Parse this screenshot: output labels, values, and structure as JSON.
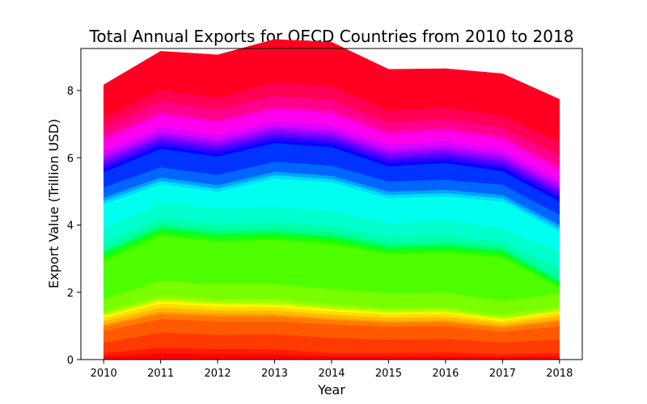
{
  "chart_data": {
    "type": "area",
    "stacked": true,
    "title": "Total Annual Exports for OECD Countries from 2010 to 2018",
    "xlabel": "Year",
    "ylabel": "Export Value (Trillion USD)",
    "x": [
      2010,
      2011,
      2012,
      2013,
      2014,
      2015,
      2016,
      2017,
      2018
    ],
    "xlim": [
      2009.6,
      2018.4
    ],
    "ylim": [
      0,
      9.25
    ],
    "yticks": [
      0,
      2,
      4,
      6,
      8
    ],
    "grid": false,
    "legend": "none",
    "colormap": "hsv",
    "series": [
      {
        "color": "#ff0000",
        "values": [
          0.1,
          0.18,
          0.16,
          0.15,
          0.1,
          0.1,
          0.1,
          0.08,
          0.1
        ]
      },
      {
        "color": "#ff1a00",
        "values": [
          0.1,
          0.18,
          0.16,
          0.16,
          0.1,
          0.1,
          0.12,
          0.08,
          0.1
        ]
      },
      {
        "color": "#ff3a00",
        "values": [
          0.3,
          0.45,
          0.42,
          0.45,
          0.45,
          0.4,
          0.4,
          0.35,
          0.4
        ]
      },
      {
        "color": "#ff5a00",
        "values": [
          0.35,
          0.4,
          0.4,
          0.38,
          0.4,
          0.38,
          0.38,
          0.32,
          0.4
        ]
      },
      {
        "color": "#ff7a00",
        "values": [
          0.15,
          0.15,
          0.15,
          0.15,
          0.13,
          0.12,
          0.12,
          0.12,
          0.14
        ]
      },
      {
        "color": "#ff9a00",
        "values": [
          0.05,
          0.07,
          0.07,
          0.06,
          0.06,
          0.05,
          0.05,
          0.05,
          0.06
        ]
      },
      {
        "color": "#ffbb00",
        "values": [
          0.1,
          0.12,
          0.11,
          0.11,
          0.1,
          0.1,
          0.1,
          0.08,
          0.1
        ]
      },
      {
        "color": "#ffdd00",
        "values": [
          0.1,
          0.12,
          0.11,
          0.11,
          0.1,
          0.1,
          0.1,
          0.07,
          0.1
        ]
      },
      {
        "color": "#fbff00",
        "values": [
          0.05,
          0.07,
          0.07,
          0.07,
          0.06,
          0.05,
          0.05,
          0.05,
          0.04
        ]
      },
      {
        "color": "#c8ff00",
        "values": [
          0.05,
          0.06,
          0.05,
          0.06,
          0.05,
          0.05,
          0.05,
          0.05,
          0.04
        ]
      },
      {
        "color": "#9aff00",
        "values": [
          0.1,
          0.1,
          0.1,
          0.1,
          0.1,
          0.08,
          0.08,
          0.1,
          0.1
        ]
      },
      {
        "color": "#7aff00",
        "values": [
          0.35,
          0.45,
          0.45,
          0.45,
          0.45,
          0.45,
          0.45,
          0.4,
          0.4
        ]
      },
      {
        "color": "#4dff00",
        "values": [
          1.15,
          1.35,
          1.27,
          1.32,
          1.35,
          1.17,
          1.2,
          1.3,
          0.17
        ]
      },
      {
        "color": "#22ff00",
        "values": [
          0.12,
          0.12,
          0.12,
          0.12,
          0.12,
          0.1,
          0.1,
          0.1,
          0.08
        ]
      },
      {
        "color": "#00ff33",
        "values": [
          0.1,
          0.1,
          0.1,
          0.1,
          0.1,
          0.1,
          0.1,
          0.1,
          0.08
        ]
      },
      {
        "color": "#00ff77",
        "values": [
          0.1,
          0.1,
          0.1,
          0.1,
          0.1,
          0.1,
          0.1,
          0.1,
          0.1
        ]
      },
      {
        "color": "#00ffaa",
        "values": [
          0.2,
          0.2,
          0.2,
          0.2,
          0.2,
          0.2,
          0.2,
          0.15,
          0.3
        ]
      },
      {
        "color": "#00ffcc",
        "values": [
          0.4,
          0.45,
          0.45,
          0.45,
          0.45,
          0.4,
          0.45,
          0.4,
          0.5
        ]
      },
      {
        "color": "#00ffee",
        "values": [
          0.75,
          0.55,
          0.5,
          0.85,
          0.85,
          0.75,
          0.7,
          0.8,
          0.6
        ]
      },
      {
        "color": "#00ddff",
        "values": [
          0.1,
          0.1,
          0.1,
          0.1,
          0.1,
          0.1,
          0.1,
          0.1,
          0.1
        ]
      },
      {
        "color": "#00a5ff",
        "values": [
          0.1,
          0.1,
          0.1,
          0.1,
          0.1,
          0.1,
          0.1,
          0.1,
          0.1
        ]
      },
      {
        "color": "#0066ff",
        "values": [
          0.3,
          0.3,
          0.3,
          0.3,
          0.3,
          0.3,
          0.3,
          0.3,
          0.3
        ]
      },
      {
        "color": "#0033ff",
        "values": [
          0.45,
          0.55,
          0.55,
          0.55,
          0.55,
          0.45,
          0.5,
          0.4,
          0.4
        ]
      },
      {
        "color": "#0a00ff",
        "values": [
          0.1,
          0.1,
          0.1,
          0.1,
          0.1,
          0.1,
          0.1,
          0.1,
          0.1
        ]
      },
      {
        "color": "#3000ff",
        "values": [
          0.1,
          0.1,
          0.1,
          0.1,
          0.1,
          0.1,
          0.1,
          0.1,
          0.1
        ]
      },
      {
        "color": "#5c00ff",
        "values": [
          0.1,
          0.1,
          0.1,
          0.1,
          0.1,
          0.1,
          0.1,
          0.1,
          0.1
        ]
      },
      {
        "color": "#8800ff",
        "values": [
          0.1,
          0.1,
          0.1,
          0.1,
          0.1,
          0.1,
          0.1,
          0.1,
          0.1
        ]
      },
      {
        "color": "#b300ff",
        "values": [
          0.1,
          0.1,
          0.1,
          0.1,
          0.1,
          0.1,
          0.1,
          0.1,
          0.1
        ]
      },
      {
        "color": "#dd00ff",
        "values": [
          0.15,
          0.15,
          0.15,
          0.15,
          0.15,
          0.15,
          0.15,
          0.15,
          0.15
        ]
      },
      {
        "color": "#ff00ee",
        "values": [
          0.3,
          0.35,
          0.35,
          0.35,
          0.35,
          0.3,
          0.3,
          0.3,
          0.3
        ]
      },
      {
        "color": "#ff00bb",
        "values": [
          0.1,
          0.1,
          0.1,
          0.1,
          0.1,
          0.1,
          0.1,
          0.1,
          0.1
        ]
      },
      {
        "color": "#ff008a",
        "values": [
          0.25,
          0.3,
          0.3,
          0.3,
          0.3,
          0.25,
          0.25,
          0.25,
          0.3
        ]
      },
      {
        "color": "#ff0055",
        "values": [
          0.3,
          0.35,
          0.35,
          0.4,
          0.4,
          0.35,
          0.35,
          0.35,
          0.4
        ]
      },
      {
        "color": "#ff0022",
        "values": [
          1.0,
          1.15,
          1.27,
          1.28,
          1.32,
          1.23,
          1.15,
          1.25,
          1.28
        ]
      }
    ]
  }
}
